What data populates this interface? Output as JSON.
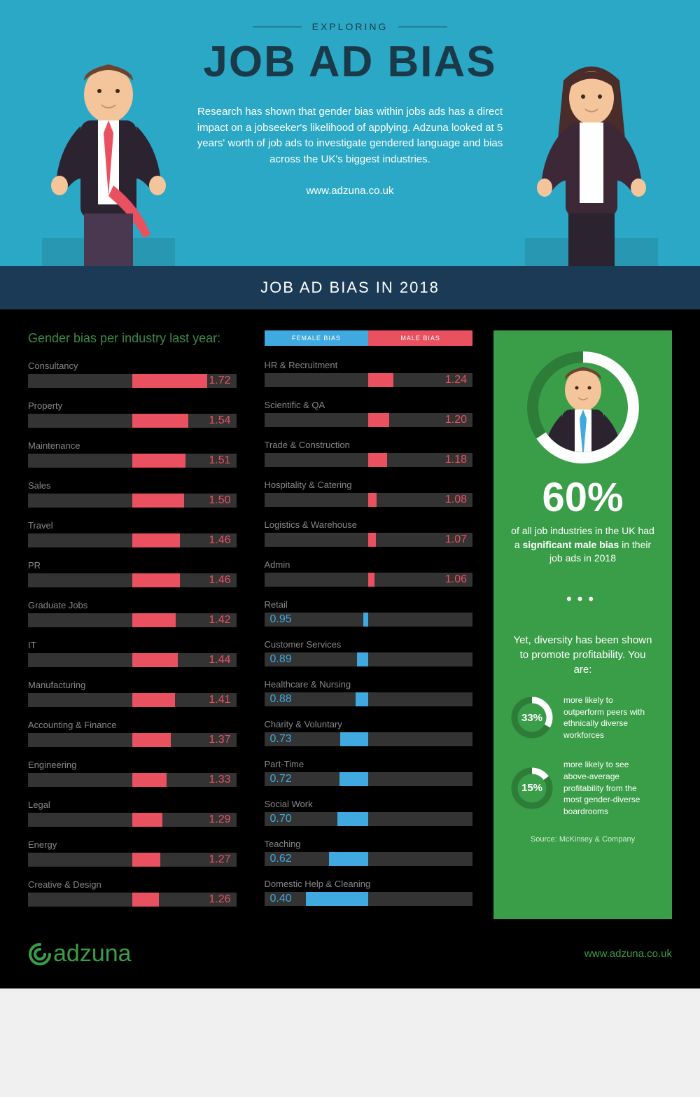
{
  "header": {
    "eyebrow": "EXPLORING",
    "title": "JOB AD BIAS",
    "description": "Research has shown that gender bias within jobs ads has a direct impact on a jobseeker's likelihood of applying. Adzuna looked at 5 years' worth of job ads to investigate gendered language and bias across the UK's biggest industries.",
    "url": "www.adzuna.co.uk"
  },
  "banner": "JOB AD BIAS IN 2018",
  "colors": {
    "male": "#e95060",
    "female": "#3fa9e0",
    "track": "#333333",
    "sidebar": "#3a9d48",
    "sidebar_ring_bg": "#2d7c38",
    "sidebar_ring_fg": "#ffffff",
    "header_bg": "#2ba8c5",
    "banner_bg": "#1a3a55"
  },
  "chart": {
    "title": "Gender bias per industry last year:",
    "legend_female": "FEMALE BIAS",
    "legend_male": "MALE BIAS",
    "max_male_scale": 2.0,
    "max_female_scale": 1.2,
    "left_column": [
      {
        "label": "Consultancy",
        "value": 1.72,
        "bias": "male"
      },
      {
        "label": "Property",
        "value": 1.54,
        "bias": "male"
      },
      {
        "label": "Maintenance",
        "value": 1.51,
        "bias": "male"
      },
      {
        "label": "Sales",
        "value": 1.5,
        "bias": "male"
      },
      {
        "label": "Travel",
        "value": 1.46,
        "bias": "male"
      },
      {
        "label": "PR",
        "value": 1.46,
        "bias": "male"
      },
      {
        "label": "Graduate Jobs",
        "value": 1.42,
        "bias": "male"
      },
      {
        "label": "IT",
        "value": 1.44,
        "bias": "male"
      },
      {
        "label": "Manufacturing",
        "value": 1.41,
        "bias": "male"
      },
      {
        "label": "Accounting & Finance",
        "value": 1.37,
        "bias": "male"
      },
      {
        "label": "Engineering",
        "value": 1.33,
        "bias": "male"
      },
      {
        "label": "Legal",
        "value": 1.29,
        "bias": "male"
      },
      {
        "label": "Energy",
        "value": 1.27,
        "bias": "male"
      },
      {
        "label": "Creative & Design",
        "value": 1.26,
        "bias": "male"
      }
    ],
    "right_column": [
      {
        "label": "HR & Recruitment",
        "value": 1.24,
        "bias": "male"
      },
      {
        "label": "Scientific & QA",
        "value": 1.2,
        "bias": "male"
      },
      {
        "label": "Trade & Construction",
        "value": 1.18,
        "bias": "male"
      },
      {
        "label": "Hospitality & Catering",
        "value": 1.08,
        "bias": "male"
      },
      {
        "label": "Logistics & Warehouse",
        "value": 1.07,
        "bias": "male"
      },
      {
        "label": "Admin",
        "value": 1.06,
        "bias": "male"
      },
      {
        "label": "Retail",
        "value": 0.95,
        "bias": "female"
      },
      {
        "label": "Customer Services",
        "value": 0.89,
        "bias": "female"
      },
      {
        "label": "Healthcare & Nursing",
        "value": 0.88,
        "bias": "female"
      },
      {
        "label": "Charity & Voluntary",
        "value": 0.73,
        "bias": "female"
      },
      {
        "label": "Part-Time",
        "value": 0.72,
        "bias": "female"
      },
      {
        "label": "Social Work",
        "value": 0.7,
        "bias": "female"
      },
      {
        "label": "Teaching",
        "value": 0.62,
        "bias": "female"
      },
      {
        "label": "Domestic Help & Cleaning",
        "value": 0.4,
        "bias": "female"
      }
    ]
  },
  "sidebar": {
    "big_percent": "60%",
    "big_desc_pre": "of all job industries in the UK had a ",
    "big_desc_bold": "significant male bias",
    "big_desc_post": " in their job ads in 2018",
    "diversity_head": "Yet, diversity has been shown to promote profitability. You are:",
    "stats": [
      {
        "pct": "33%",
        "pct_num": 33,
        "text": "more likely to outperform peers with ethnically diverse workforces"
      },
      {
        "pct": "15%",
        "pct_num": 15,
        "text": "more likely to see above-average profitability from the most gender-diverse boardrooms"
      }
    ],
    "source": "Source: McKinsey & Company"
  },
  "footer": {
    "logo": "adzuna",
    "url": "www.adzuna.co.uk"
  }
}
